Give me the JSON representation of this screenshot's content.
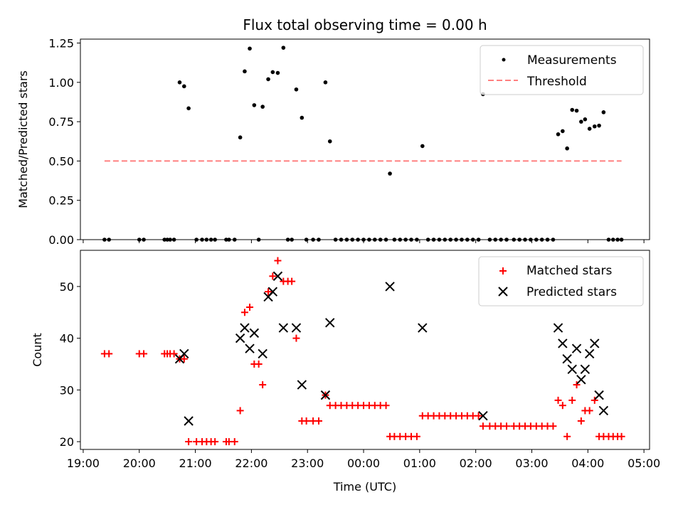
{
  "title": "Flux total observing time = 0.00 h",
  "chart_data": [
    {
      "type": "scatter",
      "ylabel": "Matched/Predicted stars",
      "ylim": [
        0,
        1.275
      ],
      "yticks": [
        "0.00",
        "0.25",
        "0.50",
        "0.75",
        "1.00",
        "1.25"
      ],
      "legend_position": "top-right",
      "series": [
        {
          "name": "Measurements",
          "marker": "dot",
          "color": "#000000",
          "points": [
            [
              19.38,
              0
            ],
            [
              19.46,
              0
            ],
            [
              20.0,
              0
            ],
            [
              20.08,
              0
            ],
            [
              20.45,
              0
            ],
            [
              20.5,
              0
            ],
            [
              20.55,
              0
            ],
            [
              20.62,
              0
            ],
            [
              20.72,
              1.0
            ],
            [
              20.8,
              0.975
            ],
            [
              20.88,
              0.835
            ],
            [
              21.02,
              0
            ],
            [
              21.12,
              0
            ],
            [
              21.2,
              0
            ],
            [
              21.28,
              0
            ],
            [
              21.35,
              0
            ],
            [
              21.55,
              0
            ],
            [
              21.6,
              0
            ],
            [
              21.7,
              0
            ],
            [
              21.8,
              0.65
            ],
            [
              21.88,
              1.07
            ],
            [
              21.97,
              1.215
            ],
            [
              22.05,
              0.855
            ],
            [
              22.13,
              0
            ],
            [
              22.2,
              0.845
            ],
            [
              22.3,
              1.02
            ],
            [
              22.38,
              1.065
            ],
            [
              22.47,
              1.06
            ],
            [
              22.57,
              1.22
            ],
            [
              22.65,
              0
            ],
            [
              22.72,
              0
            ],
            [
              22.8,
              0.955
            ],
            [
              22.9,
              0.775
            ],
            [
              22.98,
              0
            ],
            [
              23.1,
              0
            ],
            [
              23.2,
              0
            ],
            [
              23.32,
              1.0
            ],
            [
              23.4,
              0.625
            ],
            [
              23.5,
              0
            ],
            [
              23.6,
              0
            ],
            [
              23.7,
              0
            ],
            [
              23.8,
              0
            ],
            [
              23.9,
              0
            ],
            [
              24.0,
              0
            ],
            [
              24.1,
              0
            ],
            [
              24.2,
              0
            ],
            [
              24.3,
              0
            ],
            [
              24.4,
              0
            ],
            [
              24.47,
              0.42
            ],
            [
              24.55,
              0
            ],
            [
              24.65,
              0
            ],
            [
              24.75,
              0
            ],
            [
              24.85,
              0
            ],
            [
              24.95,
              0
            ],
            [
              25.05,
              0.595
            ],
            [
              25.15,
              0
            ],
            [
              25.25,
              0
            ],
            [
              25.35,
              0
            ],
            [
              25.45,
              0
            ],
            [
              25.55,
              0
            ],
            [
              25.65,
              0
            ],
            [
              25.75,
              0
            ],
            [
              25.85,
              0
            ],
            [
              25.95,
              0
            ],
            [
              26.05,
              0
            ],
            [
              26.13,
              0.925
            ],
            [
              26.25,
              0
            ],
            [
              26.35,
              0
            ],
            [
              26.45,
              0
            ],
            [
              26.55,
              0
            ],
            [
              26.68,
              0
            ],
            [
              26.78,
              0
            ],
            [
              26.88,
              0
            ],
            [
              26.98,
              0
            ],
            [
              27.08,
              0
            ],
            [
              27.18,
              0
            ],
            [
              27.28,
              0
            ],
            [
              27.38,
              0
            ],
            [
              27.47,
              0.67
            ],
            [
              27.55,
              0.69
            ],
            [
              27.63,
              0.58
            ],
            [
              27.72,
              0.825
            ],
            [
              27.8,
              0.82
            ],
            [
              27.88,
              0.75
            ],
            [
              27.95,
              0.765
            ],
            [
              28.03,
              0.705
            ],
            [
              28.12,
              0.72
            ],
            [
              28.2,
              0.725
            ],
            [
              28.28,
              0.81
            ],
            [
              28.37,
              0
            ],
            [
              28.45,
              0
            ],
            [
              28.53,
              0
            ],
            [
              28.6,
              0
            ]
          ]
        },
        {
          "name": "Threshold",
          "line": "dashed",
          "color": "#ff7f7f",
          "x": [
            19.38,
            28.6
          ],
          "y": [
            0.5,
            0.5
          ]
        }
      ]
    },
    {
      "type": "scatter",
      "xlabel": "Time (UTC)",
      "ylabel": "Count",
      "xlim": [
        18.95,
        29.1
      ],
      "ylim": [
        18.5,
        57
      ],
      "yticks": [
        "20",
        "30",
        "40",
        "50"
      ],
      "xticks": [
        {
          "v": 19,
          "label": "19:00"
        },
        {
          "v": 20,
          "label": "20:00"
        },
        {
          "v": 21,
          "label": "21:00"
        },
        {
          "v": 22,
          "label": "22:00"
        },
        {
          "v": 23,
          "label": "23:00"
        },
        {
          "v": 24,
          "label": "00:00"
        },
        {
          "v": 25,
          "label": "01:00"
        },
        {
          "v": 26,
          "label": "02:00"
        },
        {
          "v": 27,
          "label": "03:00"
        },
        {
          "v": 28,
          "label": "04:00"
        },
        {
          "v": 29,
          "label": "05:00"
        }
      ],
      "legend_position": "top-right",
      "series": [
        {
          "name": "Matched stars",
          "marker": "plus",
          "color": "#ff0000",
          "points": [
            [
              19.38,
              37
            ],
            [
              19.46,
              37
            ],
            [
              20.0,
              37
            ],
            [
              20.08,
              37
            ],
            [
              20.45,
              37
            ],
            [
              20.5,
              37
            ],
            [
              20.55,
              37
            ],
            [
              20.62,
              37
            ],
            [
              20.72,
              36
            ],
            [
              20.8,
              36
            ],
            [
              20.88,
              20
            ],
            [
              21.02,
              20
            ],
            [
              21.12,
              20
            ],
            [
              21.2,
              20
            ],
            [
              21.28,
              20
            ],
            [
              21.35,
              20
            ],
            [
              21.55,
              20
            ],
            [
              21.6,
              20
            ],
            [
              21.7,
              20
            ],
            [
              21.8,
              26
            ],
            [
              21.88,
              45
            ],
            [
              21.97,
              46
            ],
            [
              22.05,
              35
            ],
            [
              22.13,
              35
            ],
            [
              22.2,
              31
            ],
            [
              22.3,
              49
            ],
            [
              22.38,
              52
            ],
            [
              22.47,
              55
            ],
            [
              22.57,
              51
            ],
            [
              22.65,
              51
            ],
            [
              22.72,
              51
            ],
            [
              22.8,
              40
            ],
            [
              22.9,
              24
            ],
            [
              22.98,
              24
            ],
            [
              23.1,
              24
            ],
            [
              23.2,
              24
            ],
            [
              23.32,
              29
            ],
            [
              23.4,
              27
            ],
            [
              23.5,
              27
            ],
            [
              23.6,
              27
            ],
            [
              23.7,
              27
            ],
            [
              23.8,
              27
            ],
            [
              23.9,
              27
            ],
            [
              24.0,
              27
            ],
            [
              24.1,
              27
            ],
            [
              24.2,
              27
            ],
            [
              24.3,
              27
            ],
            [
              24.4,
              27
            ],
            [
              24.47,
              21
            ],
            [
              24.55,
              21
            ],
            [
              24.65,
              21
            ],
            [
              24.75,
              21
            ],
            [
              24.85,
              21
            ],
            [
              24.95,
              21
            ],
            [
              25.05,
              25
            ],
            [
              25.15,
              25
            ],
            [
              25.25,
              25
            ],
            [
              25.35,
              25
            ],
            [
              25.45,
              25
            ],
            [
              25.55,
              25
            ],
            [
              25.65,
              25
            ],
            [
              25.75,
              25
            ],
            [
              25.85,
              25
            ],
            [
              25.95,
              25
            ],
            [
              26.05,
              25
            ],
            [
              26.13,
              23
            ],
            [
              26.25,
              23
            ],
            [
              26.35,
              23
            ],
            [
              26.45,
              23
            ],
            [
              26.55,
              23
            ],
            [
              26.68,
              23
            ],
            [
              26.78,
              23
            ],
            [
              26.88,
              23
            ],
            [
              26.98,
              23
            ],
            [
              27.08,
              23
            ],
            [
              27.18,
              23
            ],
            [
              27.28,
              23
            ],
            [
              27.38,
              23
            ],
            [
              27.47,
              28
            ],
            [
              27.55,
              27
            ],
            [
              27.63,
              21
            ],
            [
              27.72,
              28
            ],
            [
              27.8,
              31
            ],
            [
              27.88,
              24
            ],
            [
              27.95,
              26
            ],
            [
              28.03,
              26
            ],
            [
              28.12,
              28
            ],
            [
              28.2,
              21
            ],
            [
              28.28,
              21
            ],
            [
              28.37,
              21
            ],
            [
              28.45,
              21
            ],
            [
              28.53,
              21
            ],
            [
              28.6,
              21
            ]
          ]
        },
        {
          "name": "Predicted stars",
          "marker": "x",
          "color": "#000000",
          "points": [
            [
              20.72,
              36
            ],
            [
              20.8,
              37
            ],
            [
              20.88,
              24
            ],
            [
              21.8,
              40
            ],
            [
              21.88,
              42
            ],
            [
              21.97,
              38
            ],
            [
              22.05,
              41
            ],
            [
              22.2,
              37
            ],
            [
              22.3,
              48
            ],
            [
              22.38,
              49
            ],
            [
              22.47,
              52
            ],
            [
              22.57,
              42
            ],
            [
              22.8,
              42
            ],
            [
              22.9,
              31
            ],
            [
              23.32,
              29
            ],
            [
              23.4,
              43
            ],
            [
              24.47,
              50
            ],
            [
              25.05,
              42
            ],
            [
              26.13,
              25
            ],
            [
              27.47,
              42
            ],
            [
              27.55,
              39
            ],
            [
              27.63,
              36
            ],
            [
              27.72,
              34
            ],
            [
              27.8,
              38
            ],
            [
              27.88,
              32
            ],
            [
              27.95,
              34
            ],
            [
              28.03,
              37
            ],
            [
              28.12,
              39
            ],
            [
              28.2,
              29
            ],
            [
              28.28,
              26
            ]
          ]
        }
      ]
    }
  ]
}
